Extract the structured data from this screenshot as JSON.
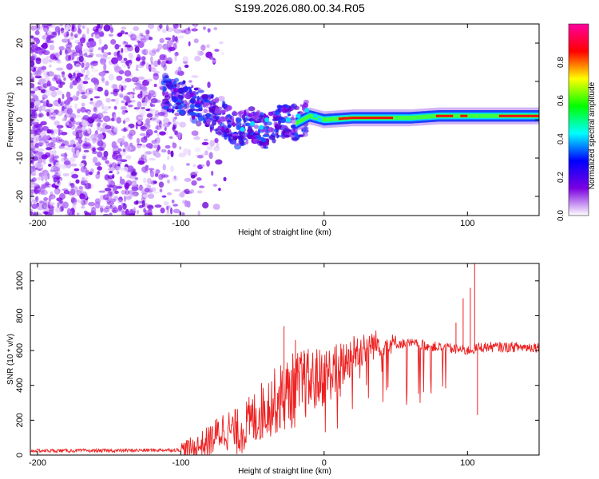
{
  "title": "S199.2026.080.00.34.R05",
  "chart_data": [
    {
      "type": "heatmap",
      "name": "spectrogram",
      "xlabel": "Height of straight line (km)",
      "ylabel": "Frequency (Hz)",
      "xlim": [
        -205,
        150
      ],
      "ylim": [
        -25,
        25
      ],
      "xticks": [
        -200,
        -100,
        0,
        100
      ],
      "yticks": [
        -20,
        -10,
        0,
        10,
        20
      ],
      "colorbar": {
        "label": "Normalized spectral amplitude",
        "range": [
          0,
          1
        ],
        "ticks": [
          "0.0",
          "0.2",
          "0.4",
          "0.6",
          "0.8"
        ],
        "colors": [
          "#ffffff",
          "#7a00e0",
          "#0000ff",
          "#00ffff",
          "#00ff00",
          "#ffff00",
          "#ff0000",
          "#ff00a0"
        ]
      },
      "ridge": {
        "x": [
          -110,
          -100,
          -90,
          -80,
          -70,
          -60,
          -50,
          -40,
          -30,
          -20,
          -10,
          0,
          20,
          40,
          60,
          80,
          100,
          120,
          150
        ],
        "freq": [
          7,
          6,
          4,
          2,
          0,
          -3,
          -1,
          -3,
          0,
          -1,
          1,
          0,
          0.5,
          0.5,
          0.5,
          1,
          1,
          1,
          1
        ]
      }
    },
    {
      "type": "line",
      "name": "snr",
      "xlabel": "Height of straight line (km)",
      "ylabel": "SNR (10 * v/v)",
      "xlim": [
        -205,
        150
      ],
      "ylim": [
        0,
        1100
      ],
      "xticks": [
        -200,
        -100,
        0,
        100
      ],
      "yticks": [
        0,
        200,
        400,
        600,
        800,
        1000
      ],
      "color": "#ee2020",
      "baseline": {
        "x": [
          -205,
          -150,
          -100,
          -90,
          -80,
          -70,
          -60,
          -50,
          -40,
          -30,
          -20,
          -10,
          0,
          10,
          20,
          30,
          40,
          50,
          60,
          80,
          100,
          110,
          150
        ],
        "y": [
          25,
          25,
          30,
          40,
          80,
          150,
          130,
          200,
          280,
          330,
          380,
          420,
          450,
          500,
          580,
          630,
          640,
          640,
          640,
          620,
          600,
          620,
          620
        ]
      },
      "peaks": [
        {
          "x": -28,
          "y": 740
        },
        {
          "x": -20,
          "y": 660
        },
        {
          "x": -14,
          "y": 600
        },
        {
          "x": 92,
          "y": 760
        },
        {
          "x": 97,
          "y": 900
        },
        {
          "x": 102,
          "y": 960
        },
        {
          "x": 105,
          "y": 1100
        },
        {
          "x": 107,
          "y": 230
        }
      ]
    }
  ]
}
